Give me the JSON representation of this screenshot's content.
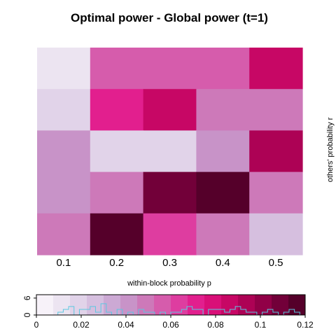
{
  "chart_data": {
    "type": "heatmap",
    "title": "Optimal power - Global power (t=1)",
    "xlabel": "within-block probability p",
    "ylabel": "others' probability r",
    "x": [
      "0.1",
      "0.2",
      "0.3",
      "0.4",
      "0.5"
    ],
    "rows": 5,
    "row_order": "top-to-bottom",
    "values": [
      [
        0.012,
        0.058,
        0.058,
        0.055,
        0.088
      ],
      [
        0.022,
        0.07,
        0.085,
        0.048,
        0.048
      ],
      [
        0.04,
        0.02,
        0.02,
        0.04,
        0.095
      ],
      [
        0.04,
        0.048,
        0.11,
        0.115,
        0.048
      ],
      [
        0.045,
        0.115,
        0.06,
        0.048,
        0.026
      ]
    ],
    "color_key": {
      "range": [
        0,
        0.12
      ],
      "ticks": [
        "0",
        "0.02",
        "0.04",
        "0.06",
        "0.08",
        "0.1",
        "0.12"
      ],
      "count_ticks": [
        "0",
        "6"
      ],
      "colors": [
        "#f7f2f9",
        "#ece4f1",
        "#e1d3e9",
        "#d6bfdf",
        "#cca9d4",
        "#c893c8",
        "#cd79b9",
        "#d65cac",
        "#de3da0",
        "#e21f8e",
        "#d90f78",
        "#c70765",
        "#ad0255",
        "#910047",
        "#720039",
        "#55002a"
      ],
      "histogram": [
        0,
        0,
        0,
        0,
        1,
        2,
        3,
        0,
        2,
        2,
        3,
        1,
        4,
        1,
        0,
        2,
        0,
        1,
        0,
        2,
        1,
        1,
        0,
        1,
        0,
        1,
        1,
        2,
        3,
        2,
        2,
        0,
        2,
        2,
        2,
        1,
        2,
        3,
        2,
        1,
        1,
        0,
        1,
        2,
        1,
        0,
        1,
        2,
        1,
        0
      ]
    }
  }
}
